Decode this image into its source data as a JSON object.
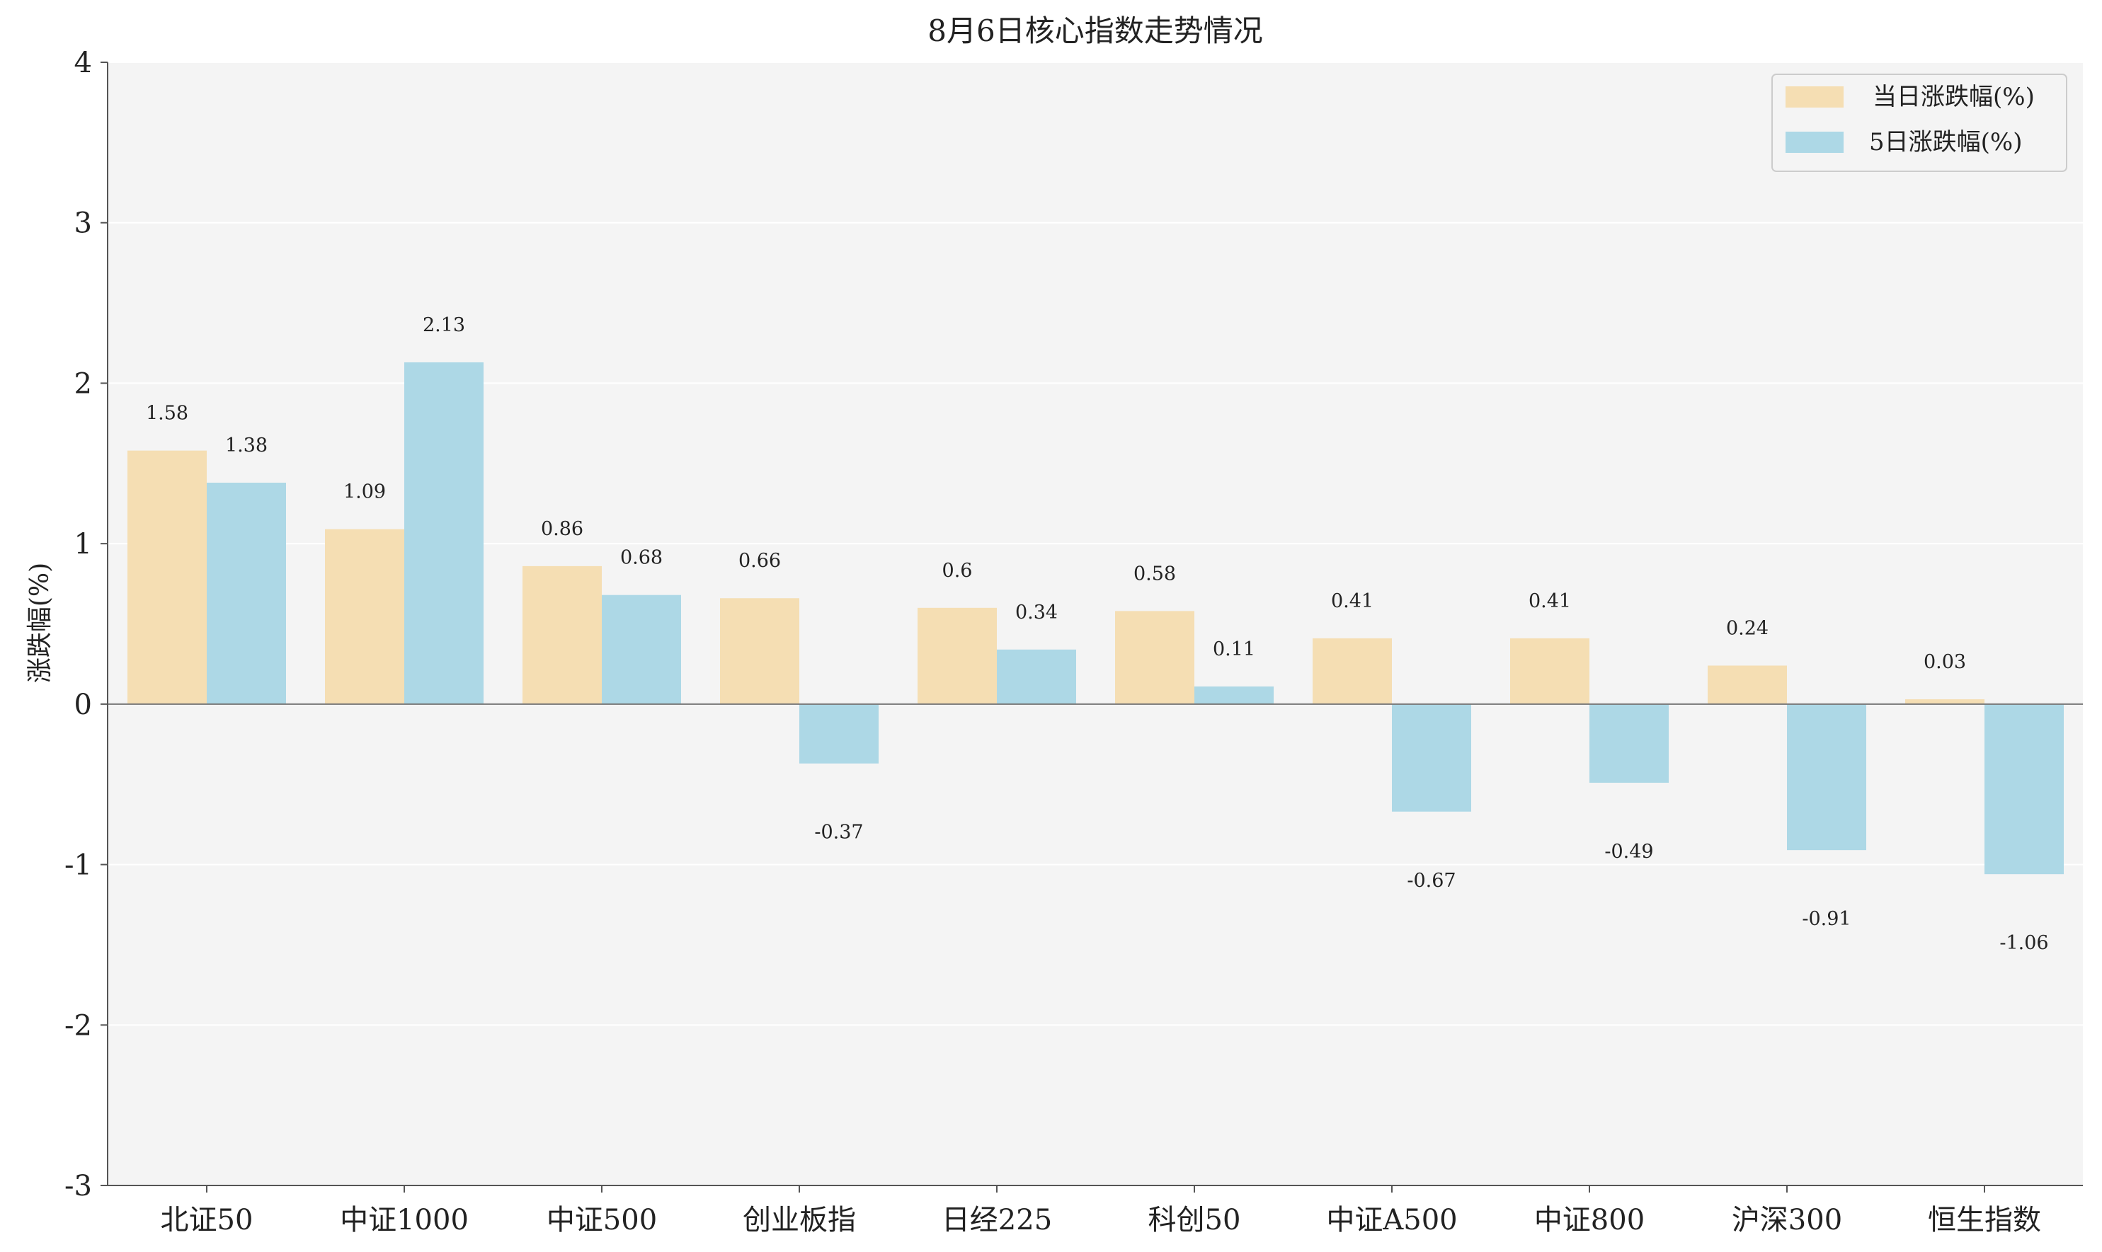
{
  "chart_data": {
    "type": "bar",
    "title": "8月6日核心指数走势情况",
    "xlabel": "",
    "ylabel": "涨跌幅(%)",
    "ylim": [
      -3,
      4
    ],
    "yticks": [
      -3,
      -2,
      -1,
      0,
      1,
      2,
      3,
      4
    ],
    "grid": true,
    "legend_position": "top-right",
    "categories": [
      "北证50",
      "中证1000",
      "中证500",
      "创业板指",
      "日经225",
      "科创50",
      "中证A500",
      "中证800",
      "沪深300",
      "恒生指数"
    ],
    "series": [
      {
        "name": "当日涨跌幅(%)",
        "color": "#f5deb3",
        "values": [
          1.58,
          1.09,
          0.86,
          0.66,
          0.6,
          0.58,
          0.41,
          0.41,
          0.24,
          0.03
        ],
        "labels": [
          "1.58",
          "1.09",
          "0.86",
          "0.66",
          "0.6",
          "0.58",
          "0.41",
          "0.41",
          "0.24",
          "0.03"
        ]
      },
      {
        "name": "5日涨跌幅(%)",
        "color": "#add8e6",
        "values": [
          1.38,
          2.13,
          0.68,
          -0.37,
          0.34,
          0.11,
          -0.67,
          -0.49,
          -0.91,
          -1.06
        ],
        "labels": [
          "1.38",
          "2.13",
          "0.68",
          "-0.37",
          "0.34",
          "0.11",
          "-0.67",
          "-0.49",
          "-0.91",
          "-1.06"
        ]
      }
    ]
  },
  "colors": {
    "background": "#f4f4f4",
    "grid": "#ffffff",
    "axis": "#555555",
    "zero_line": "#777777"
  }
}
